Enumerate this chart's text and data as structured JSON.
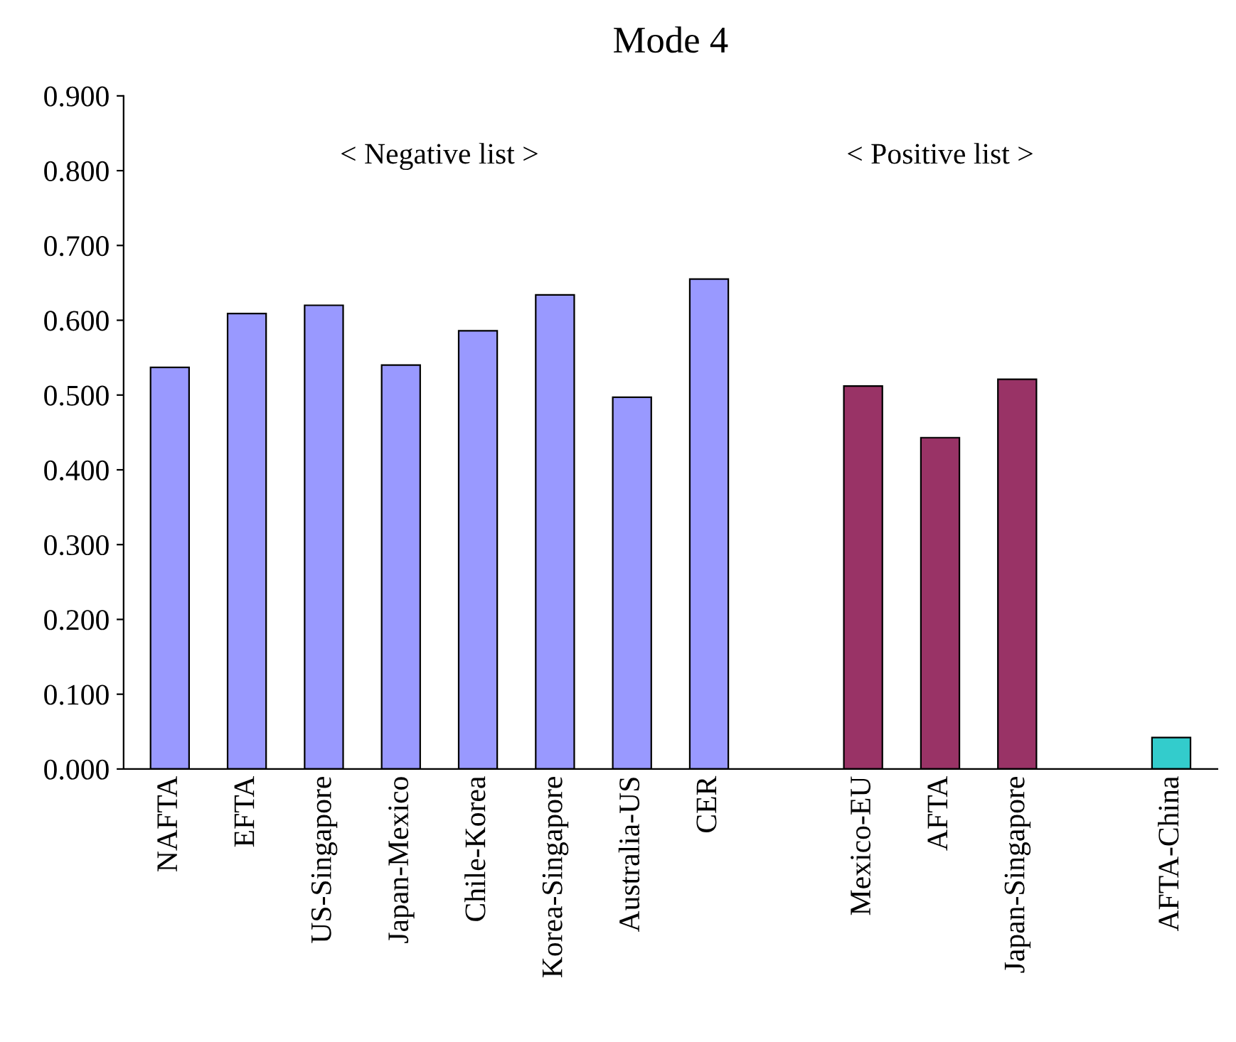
{
  "chart_data": {
    "type": "bar",
    "title": "Mode 4",
    "categories": [
      "NAFTA",
      "EFTA",
      "US-Singapore",
      "Japan-Mexico",
      "Chile-Korea",
      "Korea-Singapore",
      "Australia-US",
      "CER",
      null,
      "Mexico-EU",
      "AFTA",
      "Japan-Singapore",
      null,
      "AFTA-China"
    ],
    "values": [
      0.537,
      0.609,
      0.62,
      0.54,
      0.586,
      0.634,
      0.497,
      0.655,
      null,
      0.512,
      0.443,
      0.521,
      null,
      0.042
    ],
    "colors": [
      "#9999ff",
      "#9999ff",
      "#9999ff",
      "#9999ff",
      "#9999ff",
      "#9999ff",
      "#9999ff",
      "#9999ff",
      null,
      "#993366",
      "#993366",
      "#993366",
      null,
      "#33cccc"
    ],
    "ylim": [
      0,
      0.9
    ],
    "yticks": [
      {
        "value": 0,
        "label": "0.000"
      },
      {
        "value": 0.1,
        "label": "0.100"
      },
      {
        "value": 0.2,
        "label": "0.200"
      },
      {
        "value": 0.3,
        "label": "0.300"
      },
      {
        "value": 0.4,
        "label": "0.400"
      },
      {
        "value": 0.5,
        "label": "0.500"
      },
      {
        "value": 0.6,
        "label": "0.600"
      },
      {
        "value": 0.7,
        "label": "0.700"
      },
      {
        "value": 0.8,
        "label": "0.800"
      },
      {
        "value": 0.9,
        "label": "0.900"
      }
    ],
    "annotations": [
      "< Negative list >",
      "< Positive list >"
    ],
    "grid": false,
    "legend": false
  }
}
